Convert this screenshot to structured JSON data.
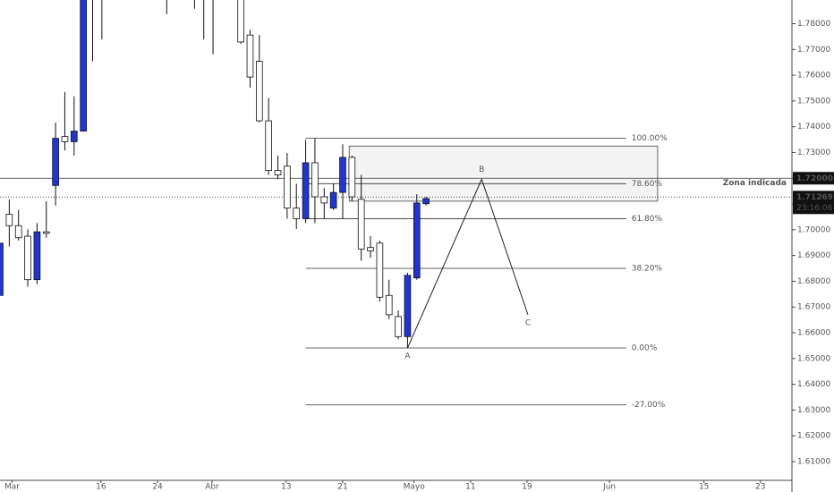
{
  "chart_data": {
    "type": "candlestick",
    "x": [
      0,
      1,
      2,
      3,
      4,
      5,
      6,
      7,
      8,
      9,
      10,
      11,
      18,
      21,
      22,
      23,
      26,
      27,
      28,
      29,
      30,
      31,
      32,
      33,
      34,
      35,
      36,
      37,
      38,
      39,
      40,
      41,
      42,
      43,
      44,
      45,
      46
    ],
    "open": [
      1.6745,
      1.706,
      1.7016,
      1.6975,
      1.6806,
      1.6992,
      1.7172,
      1.7362,
      1.7342,
      1.7383,
      1.8,
      1.799,
      1.795,
      1.797,
      1.796,
      1.792,
      1.8,
      1.7756,
      1.7654,
      1.7423,
      1.723,
      1.7247,
      1.7084,
      1.7043,
      1.726,
      1.7128,
      1.7084,
      1.7145,
      1.7281,
      1.7118,
      1.6931,
      1.6948,
      1.6745,
      1.6663,
      1.6585,
      1.6813,
      1.7101
    ],
    "high": [
      1.6948,
      1.7118,
      1.7077,
      1.7002,
      1.7026,
      1.7111,
      1.7416,
      1.7535,
      1.7518,
      1.8,
      1.806,
      1.803,
      1.8,
      1.801,
      1.8,
      1.798,
      1.805,
      1.7776,
      1.7756,
      1.7512,
      1.7288,
      1.7298,
      1.7179,
      1.7349,
      1.7356,
      1.7162,
      1.7179,
      1.7332,
      1.7288,
      1.7213,
      1.6975,
      1.6958,
      1.6806,
      1.6687,
      1.6833,
      1.7138,
      1.7128
    ],
    "low": [
      1.6745,
      1.6935,
      1.6958,
      1.6779,
      1.6789,
      1.6969,
      1.7094,
      1.7308,
      1.7288,
      1.7383,
      1.7654,
      1.7739,
      1.7837,
      1.7858,
      1.7739,
      1.7681,
      1.7722,
      1.7552,
      1.7417,
      1.7213,
      1.7196,
      1.7043,
      1.7003,
      1.7026,
      1.7026,
      1.7043,
      1.7077,
      1.7043,
      1.7111,
      1.688,
      1.6891,
      1.6721,
      1.6653,
      1.6575,
      1.6541,
      1.6806,
      1.7094
    ],
    "close": [
      1.6948,
      1.7016,
      1.6969,
      1.6806,
      1.6992,
      1.6986,
      1.7355,
      1.7342,
      1.7383,
      1.795,
      1.796,
      1.795,
      1.792,
      1.793,
      1.792,
      1.79,
      1.7729,
      1.7593,
      1.7423,
      1.723,
      1.7213,
      1.7084,
      1.7043,
      1.726,
      1.7128,
      1.7104,
      1.7145,
      1.7281,
      1.7128,
      1.6925,
      1.6918,
      1.6738,
      1.667,
      1.6585,
      1.6823,
      1.7104,
      1.7121
    ],
    "up_color": "#1f35d8",
    "down_color": "#ffffff",
    "xlim": [
      0,
      85.5
    ],
    "xticks": [
      {
        "value": 1.3,
        "label": "Mar"
      },
      {
        "value": 10.9,
        "label": "16"
      },
      {
        "value": 17.0,
        "label": "24"
      },
      {
        "value": 22.9,
        "label": "Abr"
      },
      {
        "value": 30.9,
        "label": "13"
      },
      {
        "value": 37.0,
        "label": "21"
      },
      {
        "value": 44.7,
        "label": "Mayo"
      },
      {
        "value": 50.8,
        "label": "11"
      },
      {
        "value": 56.9,
        "label": "19"
      },
      {
        "value": 65.8,
        "label": "Jun"
      },
      {
        "value": 76.0,
        "label": "15"
      },
      {
        "value": 82.1,
        "label": "23"
      }
    ],
    "ylim": [
      1.6027,
      1.7892
    ],
    "yticks": [
      {
        "value": 1.61,
        "label": "1.61000"
      },
      {
        "value": 1.62,
        "label": "1.62000"
      },
      {
        "value": 1.63,
        "label": "1.63000"
      },
      {
        "value": 1.64,
        "label": "1.64000"
      },
      {
        "value": 1.65,
        "label": "1.65000"
      },
      {
        "value": 1.66,
        "label": "1.66000"
      },
      {
        "value": 1.67,
        "label": "1.67000"
      },
      {
        "value": 1.68,
        "label": "1.68000"
      },
      {
        "value": 1.69,
        "label": "1.69000"
      },
      {
        "value": 1.7,
        "label": "1.70000"
      },
      {
        "value": 1.71,
        "label": "1.71000"
      },
      {
        "value": 1.72,
        "label": "1.72000"
      },
      {
        "value": 1.73,
        "label": "1.73000"
      },
      {
        "value": 1.74,
        "label": "1.74000"
      },
      {
        "value": 1.75,
        "label": "1.75000"
      },
      {
        "value": 1.76,
        "label": "1.76000"
      },
      {
        "value": 1.77,
        "label": "1.77000"
      },
      {
        "value": 1.78,
        "label": "1.78000"
      }
    ],
    "fib": {
      "x_from": 33,
      "x_to": 67.6,
      "levels": [
        {
          "value": 1.7355,
          "label": "100.00%"
        },
        {
          "value": 1.7179,
          "label": "78.60%"
        },
        {
          "value": 1.7043,
          "label": "61.80%"
        },
        {
          "value": 1.685,
          "label": "38.20%"
        },
        {
          "value": 1.6541,
          "label": "0.00%"
        },
        {
          "value": 1.6321,
          "label": "-27.00%"
        }
      ]
    },
    "zone": {
      "x_from": 37.7,
      "x_to": 71.0,
      "top": 1.7325,
      "bottom": 1.7111
    },
    "pattern": [
      {
        "x": 44,
        "value": 1.6541,
        "label": "A"
      },
      {
        "x": 52,
        "value": 1.7196,
        "label": "B"
      },
      {
        "x": 57,
        "value": 1.667,
        "label": "C"
      }
    ],
    "zone_line": {
      "value": 1.72,
      "price_label": "1.72000",
      "text": "Zona indicada"
    },
    "last_price": {
      "value": 1.71269,
      "label": "1.71269",
      "countdown": "23:16:06"
    }
  }
}
